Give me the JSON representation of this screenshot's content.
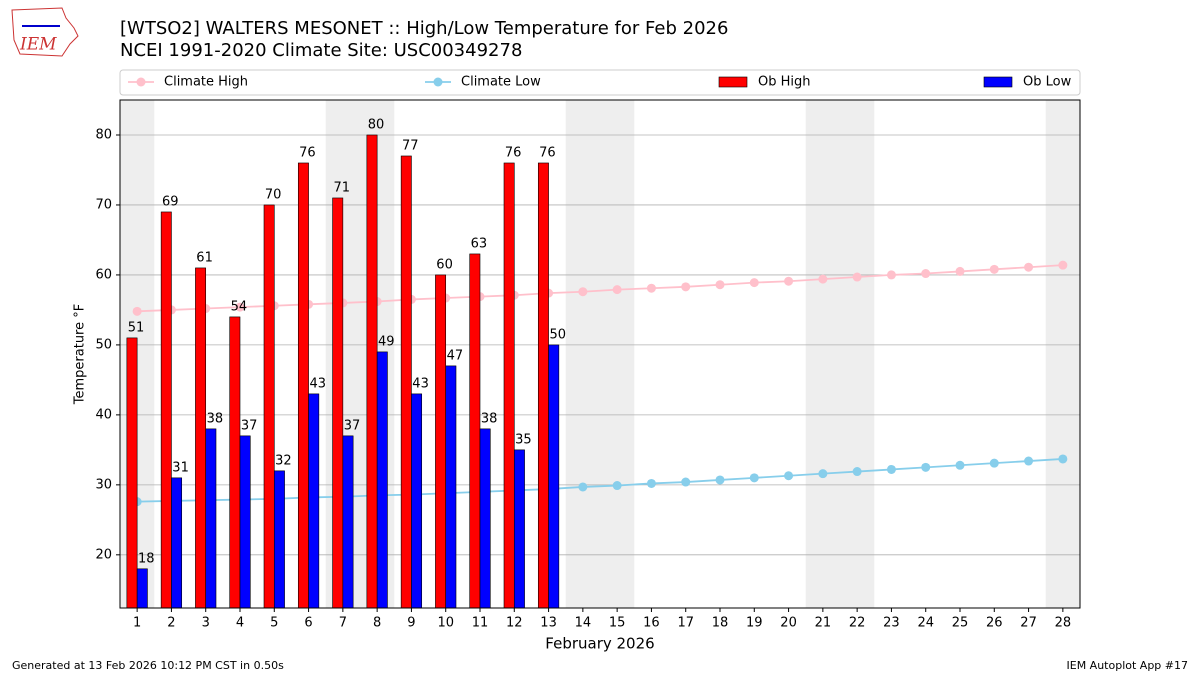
{
  "chart_data": {
    "type": "bar",
    "title": "[WTSO2] WALTERS MESONET :: High/Low Temperature for Feb 2026",
    "subtitle": "NCEI 1991-2020 Climate Site: USC00349278",
    "logo_text": "IEM",
    "x_label": "February 2026",
    "y_label": "Temperature °F",
    "x": [
      1,
      2,
      3,
      4,
      5,
      6,
      7,
      8,
      9,
      10,
      11,
      12,
      13,
      14,
      15,
      16,
      17,
      18,
      19,
      20,
      21,
      22,
      23,
      24,
      25,
      26,
      27,
      28
    ],
    "xlim": [
      0.5,
      28.5
    ],
    "ylim": [
      12.4,
      85
    ],
    "yticks": [
      20,
      30,
      40,
      50,
      60,
      70,
      80
    ],
    "grid": true,
    "shaded_days": [
      1,
      7,
      8,
      14,
      15,
      21,
      22,
      28
    ],
    "series": [
      {
        "name": "Climate High",
        "type": "line",
        "color": "#ffc0cb",
        "values": [
          54.8,
          55.0,
          55.2,
          55.4,
          55.6,
          55.8,
          56.0,
          56.2,
          56.5,
          56.7,
          56.9,
          57.1,
          57.4,
          57.6,
          57.9,
          58.1,
          58.3,
          58.6,
          58.9,
          59.1,
          59.4,
          59.7,
          60.0,
          60.2,
          60.5,
          60.8,
          61.1,
          61.4
        ]
      },
      {
        "name": "Climate Low",
        "type": "line",
        "color": "#87ceeb",
        "values": [
          27.6,
          27.7,
          27.8,
          27.9,
          28.0,
          28.2,
          28.3,
          28.5,
          28.6,
          28.8,
          29.0,
          29.2,
          29.4,
          29.7,
          29.9,
          30.2,
          30.4,
          30.7,
          31.0,
          31.3,
          31.6,
          31.9,
          32.2,
          32.5,
          32.8,
          33.1,
          33.4,
          33.7
        ]
      },
      {
        "name": "Ob High",
        "type": "bar",
        "color": "#ff0000",
        "offset": -1,
        "values": [
          51,
          69,
          61,
          54,
          70,
          76,
          71,
          80,
          77,
          60,
          63,
          76,
          76,
          null,
          null,
          null,
          null,
          null,
          null,
          null,
          null,
          null,
          null,
          null,
          null,
          null,
          null,
          null
        ]
      },
      {
        "name": "Ob Low",
        "type": "bar",
        "color": "#0000ff",
        "offset": 0,
        "values": [
          18,
          31,
          38,
          37,
          32,
          43,
          37,
          49,
          43,
          47,
          38,
          35,
          50,
          null,
          null,
          null,
          null,
          null,
          null,
          null,
          null,
          null,
          null,
          null,
          null,
          null,
          null,
          null
        ]
      }
    ],
    "footer_left": "Generated at 13 Feb 2026 10:12 PM CST in 0.50s",
    "footer_right": "IEM Autoplot App #17"
  }
}
